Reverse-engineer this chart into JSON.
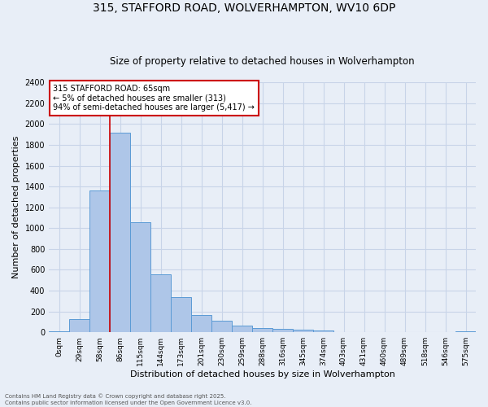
{
  "title1": "315, STAFFORD ROAD, WOLVERHAMPTON, WV10 6DP",
  "title2": "Size of property relative to detached houses in Wolverhampton",
  "xlabel": "Distribution of detached houses by size in Wolverhampton",
  "ylabel": "Number of detached properties",
  "footer1": "Contains HM Land Registry data © Crown copyright and database right 2025.",
  "footer2": "Contains public sector information licensed under the Open Government Licence v3.0.",
  "annotation_title": "315 STAFFORD ROAD: 65sqm",
  "annotation_line1": "← 5% of detached houses are smaller (313)",
  "annotation_line2": "94% of semi-detached houses are larger (5,417) →",
  "bar_values": [
    10,
    125,
    1360,
    1920,
    1055,
    560,
    335,
    165,
    110,
    65,
    40,
    30,
    25,
    20,
    5,
    5,
    5,
    5,
    5,
    5,
    10
  ],
  "bar_color": "#aec6e8",
  "bar_edge_color": "#5b9bd5",
  "bg_color": "#e8eef7",
  "grid_color": "#c8d4e8",
  "vline_x_index": 2.5,
  "vline_color": "#cc0000",
  "annotation_box_color": "#cc0000",
  "ylim": [
    0,
    2400
  ],
  "yticks": [
    0,
    200,
    400,
    600,
    800,
    1000,
    1200,
    1400,
    1600,
    1800,
    2000,
    2200,
    2400
  ],
  "x_labels": [
    "0sqm",
    "29sqm",
    "58sqm",
    "86sqm",
    "115sqm",
    "144sqm",
    "173sqm",
    "201sqm",
    "230sqm",
    "259sqm",
    "288sqm",
    "316sqm",
    "345sqm",
    "374sqm",
    "403sqm",
    "431sqm",
    "460sqm",
    "489sqm",
    "518sqm",
    "546sqm",
    "575sqm"
  ]
}
